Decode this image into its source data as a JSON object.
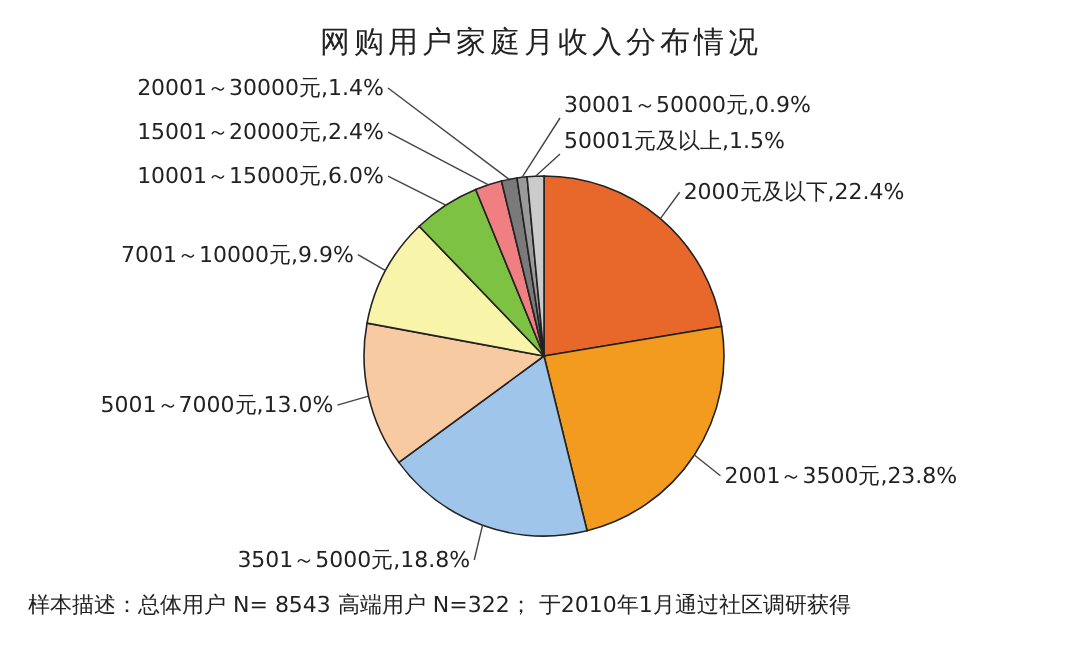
{
  "chart_data": {
    "type": "pie",
    "title": "网购用户家庭月收入分布情况",
    "categories": [
      "2000元及以下",
      "2001～3500元",
      "3501～5000元",
      "5001～7000元",
      "7001～10000元",
      "10001～15000元",
      "15001～20000元",
      "20001～30000元",
      "30001～50000元",
      "50001元及以上"
    ],
    "values": [
      22.4,
      23.8,
      18.8,
      13.0,
      9.9,
      6.0,
      2.4,
      1.4,
      0.9,
      1.5
    ],
    "value_labels": [
      "22.4%",
      "23.8%",
      "18.8%",
      "13.0%",
      "9.9%",
      "6.0%",
      "2.4%",
      "1.4%",
      "0.9%",
      "1.5%"
    ],
    "colors": [
      "#e8672a",
      "#f39b1f",
      "#9fc5ea",
      "#f8caa2",
      "#f8f5aa",
      "#7dc242",
      "#ef7f80",
      "#7a7a7a",
      "#9a9a9a",
      "#cbcbcb"
    ],
    "annotations": [
      "样本描述：总体用户 N= 8543  高端用户 N=322；  于2010年1月通过社区调研获得"
    ]
  }
}
